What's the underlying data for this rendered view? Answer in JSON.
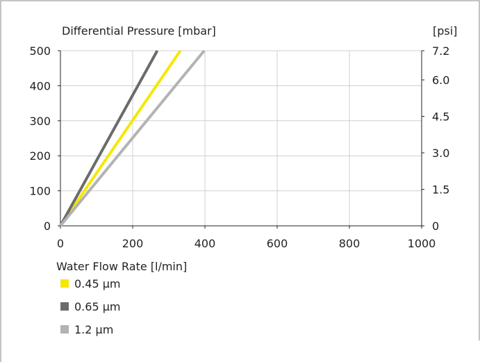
{
  "chart_data": {
    "type": "line",
    "ylabel": "Differential Pressure [mbar]",
    "ylabel_right": "[psi]",
    "xlabel": "Water Flow Rate [l/min]",
    "xlim": [
      0,
      1000
    ],
    "ylim": [
      0,
      500
    ],
    "ylim_right": [
      0,
      7.2
    ],
    "x_ticks": [
      "0",
      "200",
      "400",
      "600",
      "800",
      "1000"
    ],
    "y_ticks": [
      "0",
      "100",
      "200",
      "300",
      "400",
      "500"
    ],
    "y_right_ticks": [
      "0",
      "1.5",
      "3.0",
      "4.5",
      "6.0",
      "7.2"
    ],
    "y_right_tick_values": [
      0,
      1.5,
      3.0,
      4.5,
      6.0,
      7.2
    ],
    "grid": true,
    "legend_position": "bottom-left",
    "series": [
      {
        "name": "0.45 µm",
        "color": "#f5e800",
        "x": [
          0,
          332
        ],
        "y": [
          0,
          500
        ]
      },
      {
        "name": "0.65 µm",
        "color": "#6b6b6b",
        "x": [
          0,
          268
        ],
        "y": [
          0,
          500
        ]
      },
      {
        "name": "1.2 µm",
        "color": "#b3b3b3",
        "x": [
          0,
          398
        ],
        "y": [
          0,
          500
        ]
      }
    ],
    "legend_order": [
      0,
      1,
      2
    ]
  }
}
